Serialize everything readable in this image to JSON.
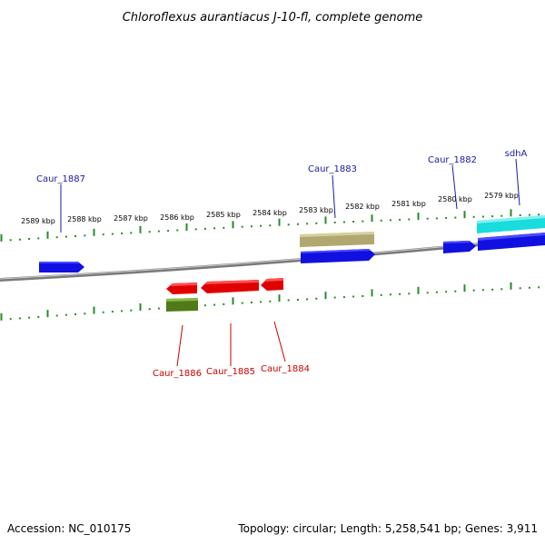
{
  "title": "Chloroflexus aurantiacus J-10-fl, complete genome",
  "accession": "Accession: NC_010175",
  "topology": "Topology: circular; Length: 5,258,541 bp; Genes: 3,911",
  "colors": {
    "backbone": "#7a7a7a",
    "tick": "#2a8a2a",
    "forward_cds": "#1010e0",
    "reverse_cds": "#e00000",
    "other_rna": "#b0a870",
    "trna": "#4e7a18",
    "sdh_feature": "#19dcdc",
    "top_label": "#1a1aa8",
    "bottom_label": "#cc0000"
  },
  "kbp_labels": [
    "2589 kbp",
    "2588 kbp",
    "2587 kbp",
    "2586 kbp",
    "2585 kbp",
    "2584 kbp",
    "2583 kbp",
    "2582 kbp",
    "2581 kbp",
    "2580 kbp",
    "2579 kbp"
  ],
  "top_gene_labels": [
    "Caur_1887",
    "Caur_1883",
    "Caur_1882",
    "sdhA"
  ],
  "bottom_gene_labels": [
    "Caur_1886",
    "Caur_1885",
    "Caur_1884"
  ]
}
